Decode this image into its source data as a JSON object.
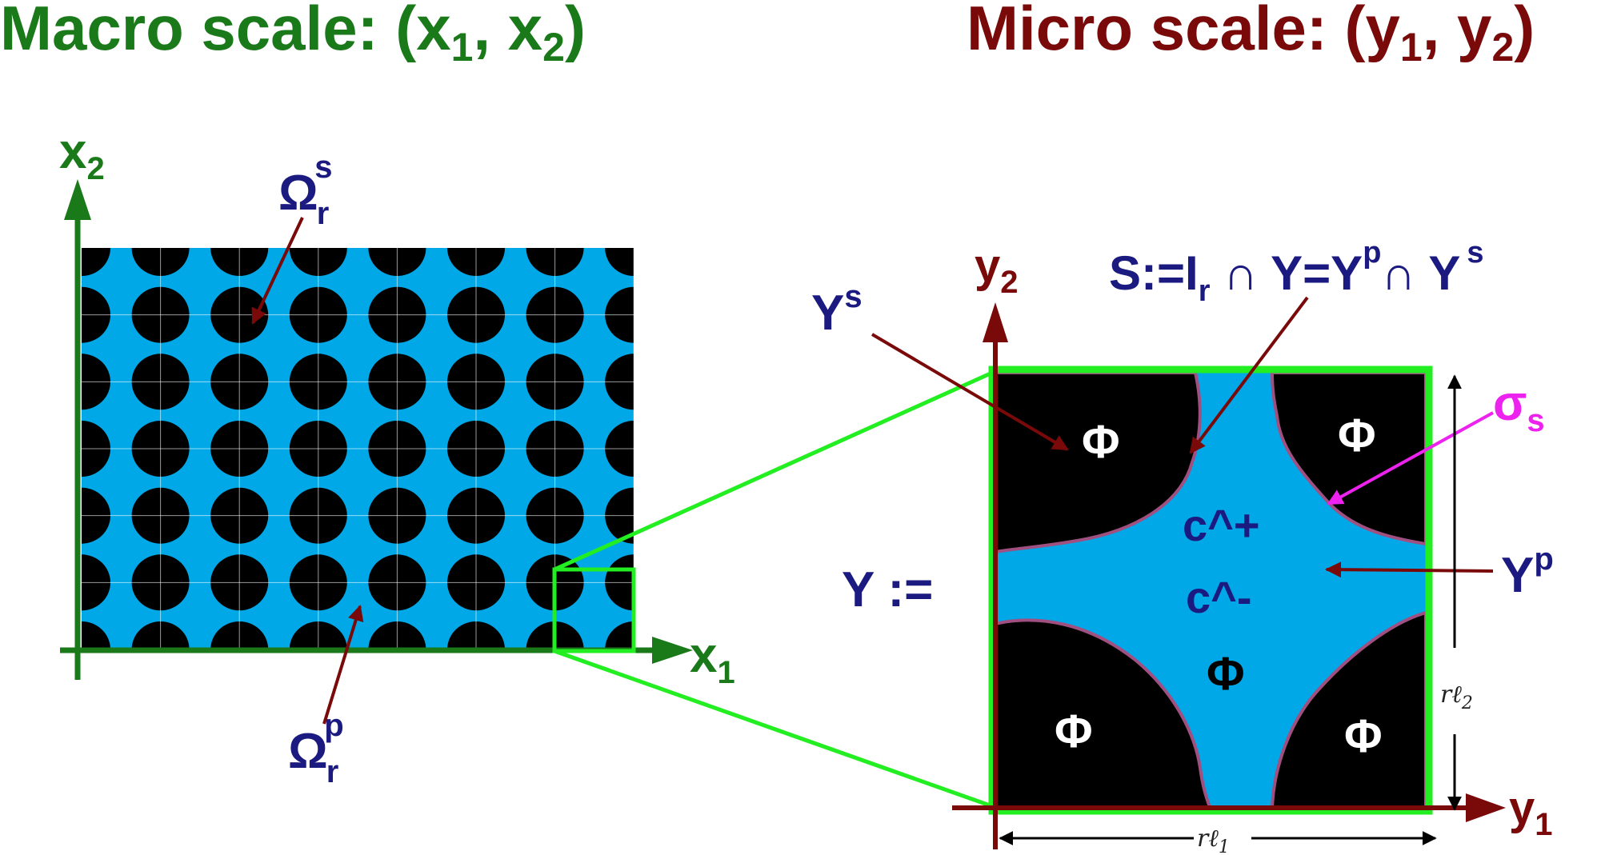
{
  "headings": {
    "macro": {
      "text": "Macro scale: (x",
      "sub1": "1",
      "sep": ", x",
      "sub2": "2",
      "close": ")",
      "color": "#1a7a1a"
    },
    "micro": {
      "text": "Micro scale: (y",
      "sub1": "1",
      "sep": ", y",
      "sub2": "2",
      "close": ")",
      "color": "#7a0a0a"
    }
  },
  "macro": {
    "x_axis": {
      "base": "x",
      "sub": "1"
    },
    "y_axis": {
      "base": "x",
      "sub": "2"
    },
    "omega_s": {
      "base": "Ω",
      "sub": "r",
      "sup": "s"
    },
    "omega_p": {
      "base": "Ω",
      "sub": "r",
      "sup": "p"
    }
  },
  "micro": {
    "x_axis": {
      "base": "y",
      "sub": "1"
    },
    "y_axis": {
      "base": "y",
      "sub": "2"
    },
    "Y_def": "Y :=",
    "Ys": {
      "base": "Y",
      "sup": "s"
    },
    "Yp": {
      "base": "Y",
      "sup": "p"
    },
    "S_def": {
      "p1": "S:=I",
      "sub": "r",
      "p2": " ∩ Y=Y",
      "sup1": "p",
      "p3": "∩ Y",
      "sup2": "s"
    },
    "sigma": {
      "base": "σ",
      "sub": "s"
    },
    "c_plus": "c^+",
    "c_minus": "c^-",
    "phi": "Φ",
    "r_l1": {
      "base": "rℓ",
      "sub": "1"
    },
    "r_l2": {
      "base": "rℓ",
      "sub": "2"
    }
  },
  "colors": {
    "green": "#1a7a1a",
    "dark_red": "#7a0a0a",
    "navy": "#1a1a80",
    "light_blue": "#00a8e8",
    "bright_green": "#22ee22",
    "magenta": "#ee22ee",
    "grain_outline": "#a05080"
  }
}
